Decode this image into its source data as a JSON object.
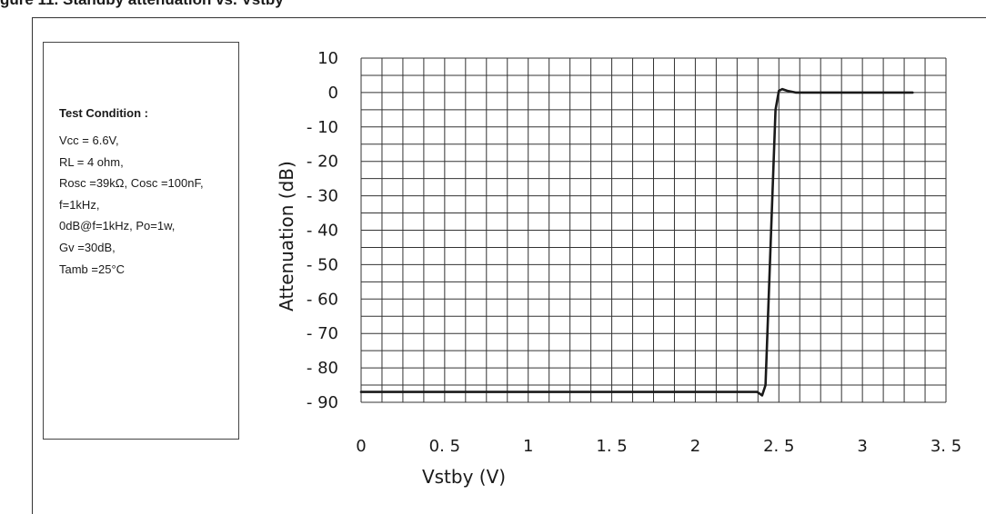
{
  "figure_title": "gure 11. Standby attenuation vs. Vstby",
  "test_condition": {
    "heading": "Test Condition :",
    "lines": [
      "Vcc = 6.6V,",
      "RL = 4 ohm,",
      "Rosc =39kΩ, Cosc =100nF,",
      "f=1kHz,",
      "0dB@f=1kHz, Po=1w,",
      "Gv =30dB,",
      "Tamb =25°C"
    ]
  },
  "colors": {
    "grid": "#333333",
    "curve": "#1a1a1a"
  },
  "chart_data": {
    "type": "line",
    "title": "",
    "xlabel": "Vstby (V)",
    "ylabel": "Attenuation (dB)",
    "xlim": [
      0,
      3.5
    ],
    "ylim": [
      -90,
      10
    ],
    "x_ticks": [
      0,
      0.5,
      1,
      1.5,
      2,
      2.5,
      3,
      3.5
    ],
    "x_tick_labels": [
      "0",
      "0. 5",
      "1",
      "1. 5",
      "2",
      "2. 5",
      "3",
      "3. 5"
    ],
    "y_ticks": [
      10,
      0,
      -10,
      -20,
      -30,
      -40,
      -50,
      -60,
      -70,
      -80,
      -90
    ],
    "y_tick_labels": [
      "10",
      "0",
      "- 10",
      "- 20",
      "- 30",
      "- 40",
      "- 50",
      "- 60",
      "- 70",
      "- 80",
      "- 90"
    ],
    "grid": true,
    "legend": "none",
    "series": [
      {
        "x": [
          0,
          2.3,
          2.37,
          2.4,
          2.42,
          2.45,
          2.48,
          2.5,
          2.52,
          2.55,
          2.6,
          2.7,
          3.3
        ],
        "y": [
          -87,
          -87,
          -87,
          -88,
          -85,
          -45,
          -5,
          0.5,
          1,
          0.5,
          0,
          0,
          0
        ]
      }
    ]
  }
}
